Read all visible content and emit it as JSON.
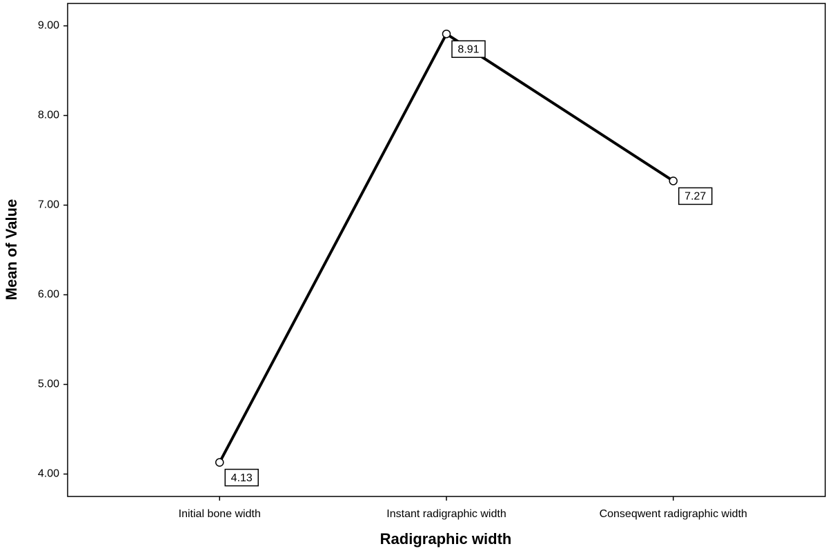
{
  "chart_data": {
    "type": "line",
    "x_label": "Radigraphic width",
    "y_label": "Mean of Value",
    "categories": [
      "Initial bone width",
      "Instant radigraphic width",
      "Conseqwent radigraphic width"
    ],
    "values": [
      4.13,
      8.91,
      7.27
    ],
    "color": "#000000",
    "ylim": [
      3.75,
      9.25
    ],
    "yticks": [
      {
        "value": 4,
        "label": "4.00"
      },
      {
        "value": 5,
        "label": "5.00"
      },
      {
        "value": 6,
        "label": "6.00"
      },
      {
        "value": 7,
        "label": "7.00"
      },
      {
        "value": 8,
        "label": "8.00"
      },
      {
        "value": 9,
        "label": "9.00"
      }
    ],
    "grid": false
  }
}
